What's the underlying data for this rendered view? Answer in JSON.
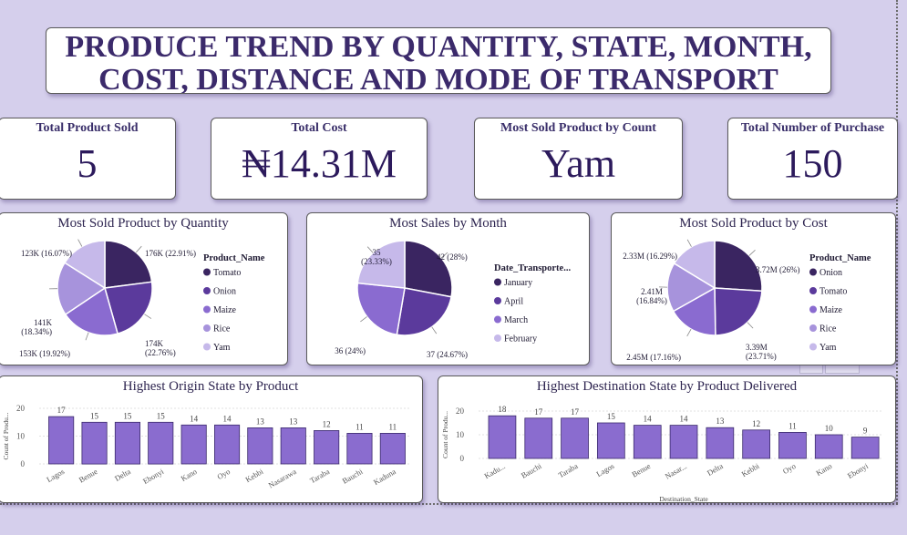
{
  "header": {
    "title_line1": "PRODUCE TREND BY QUANTITY, STATE, MONTH,",
    "title_line2": "COST, DISTANCE AND MODE OF TRANSPORT"
  },
  "kpis": [
    {
      "label": "Total Product Sold",
      "value": "5"
    },
    {
      "label": "Total Cost",
      "value": "₦14.31M"
    },
    {
      "label": "Most Sold Product by Count",
      "value": "Yam"
    },
    {
      "label": "Total Number of Purchase",
      "value": "150"
    }
  ],
  "colors": {
    "c1": "#3a2561",
    "c2": "#5b3a9c",
    "c3": "#8a6bd0",
    "c4": "#a793dc",
    "c5": "#c6b9ea",
    "bar": "#8a6ccf"
  },
  "chart_data": [
    {
      "type": "pie",
      "title": "Most Sold Product by Quantity",
      "legend_title": "Product_Name",
      "legend_position": "right",
      "categories": [
        "Tomato",
        "Onion",
        "Maize",
        "Rice",
        "Yam"
      ],
      "values": [
        176000,
        174000,
        153000,
        141000,
        123000
      ],
      "labels": [
        [
          "176K (22.91%)"
        ],
        [
          "174K",
          "(22.76%)"
        ],
        [
          "153K (19.92%)"
        ],
        [
          "141K",
          "(18.34%)"
        ],
        [
          "123K (16.07%)"
        ]
      ]
    },
    {
      "type": "pie",
      "title": "Most Sales by Month",
      "legend_title": "Date_Transporte...",
      "legend_position": "right",
      "categories": [
        "January",
        "April",
        "March",
        "February"
      ],
      "values": [
        42,
        37,
        36,
        35
      ],
      "labels": [
        [
          "42 (28%)"
        ],
        [
          "37 (24.67%)"
        ],
        [
          "36 (24%)"
        ],
        [
          "35",
          "(23.33%)"
        ]
      ]
    },
    {
      "type": "pie",
      "title": "Most Sold Product by Cost",
      "legend_title": "Product_Name",
      "legend_position": "right",
      "categories": [
        "Onion",
        "Tomato",
        "Maize",
        "Rice",
        "Yam"
      ],
      "values": [
        3.72,
        3.39,
        2.45,
        2.41,
        2.33
      ],
      "labels": [
        [
          "3.72M (26%)"
        ],
        [
          "3.39M",
          "(23.71%)"
        ],
        [
          "2.45M (17.16%)"
        ],
        [
          "2.41M",
          "(16.84%)"
        ],
        [
          "2.33M (16.29%)"
        ]
      ]
    },
    {
      "type": "bar",
      "title": "Highest Origin State by Product",
      "ylabel": "Count of Produ...",
      "xlabel": "",
      "ylim": [
        0,
        20
      ],
      "yticks": [
        0,
        10,
        20
      ],
      "categories": [
        "Lagos",
        "Benue",
        "Delta",
        "Ebonyi",
        "Kano",
        "Oyo",
        "Kebbi",
        "Nasarawa",
        "Taraba",
        "Bauchi",
        "Kaduna"
      ],
      "values": [
        17,
        15,
        15,
        15,
        14,
        14,
        13,
        13,
        12,
        11,
        11
      ]
    },
    {
      "type": "bar",
      "title": "Highest Destination State by Product Delivered",
      "ylabel": "Count of Produ...",
      "xlabel": "Destination_State",
      "ylim": [
        0,
        20
      ],
      "yticks": [
        0,
        10,
        20
      ],
      "categories": [
        "Kadu...",
        "Bauchi",
        "Taraba",
        "Lagos",
        "Benue",
        "Nasar...",
        "Delta",
        "Kebbi",
        "Oyo",
        "Kano",
        "Ebonyi"
      ],
      "values": [
        18,
        17,
        17,
        15,
        14,
        14,
        13,
        12,
        11,
        10,
        9
      ]
    }
  ]
}
